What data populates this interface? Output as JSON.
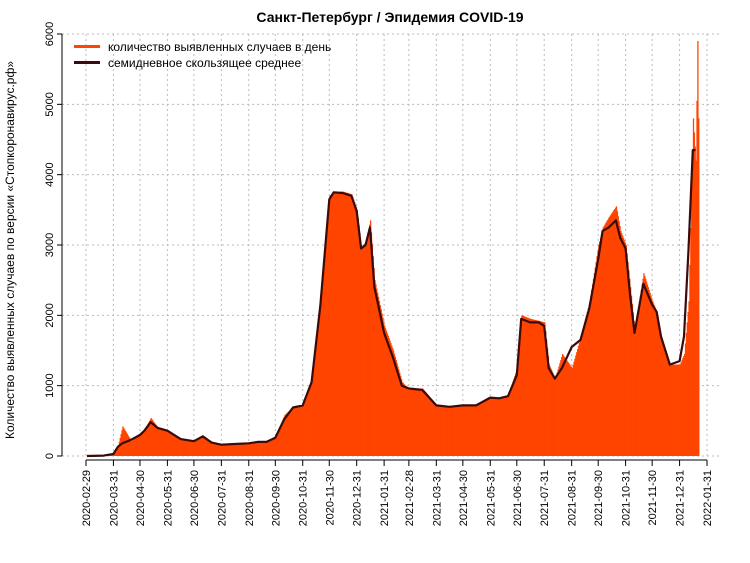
{
  "chart_data": {
    "type": "area",
    "title": "Санкт-Петербург / Эпидемия COVID-19",
    "ylabel": "Количество выявленных случаев по версии «Стопкоронавирус.рф»",
    "xlabel": "",
    "ylim": [
      0,
      6000
    ],
    "yticks": [
      0,
      1000,
      2000,
      3000,
      4000,
      5000,
      6000
    ],
    "xticks": [
      "2020-02-29",
      "2020-03-31",
      "2020-04-30",
      "2020-05-31",
      "2020-06-30",
      "2020-07-31",
      "2020-08-31",
      "2020-09-30",
      "2020-10-31",
      "2020-11-30",
      "2020-12-31",
      "2021-01-31",
      "2021-02-28",
      "2021-03-31",
      "2021-04-30",
      "2021-05-31",
      "2021-06-30",
      "2021-07-31",
      "2021-08-31",
      "2021-09-30",
      "2021-10-31",
      "2021-11-30",
      "2021-12-31",
      "2022-01-31"
    ],
    "grid": true,
    "legend_position": "top-left",
    "colors": {
      "daily": "#ff4500",
      "average": "#3b0a0a",
      "grid": "#bbbbbb"
    },
    "series": [
      {
        "name": "количество выявленных случаев в день",
        "style": "bars",
        "x": [
          "2020-03-01",
          "2020-03-20",
          "2020-03-31",
          "2020-04-05",
          "2020-04-10",
          "2020-04-20",
          "2020-04-30",
          "2020-05-05",
          "2020-05-12",
          "2020-05-20",
          "2020-05-31",
          "2020-06-15",
          "2020-06-30",
          "2020-07-10",
          "2020-07-20",
          "2020-07-31",
          "2020-08-15",
          "2020-08-31",
          "2020-09-10",
          "2020-09-20",
          "2020-09-30",
          "2020-10-10",
          "2020-10-20",
          "2020-10-31",
          "2020-11-10",
          "2020-11-20",
          "2020-11-30",
          "2020-12-05",
          "2020-12-15",
          "2020-12-25",
          "2020-12-31",
          "2021-01-05",
          "2021-01-10",
          "2021-01-15",
          "2021-01-20",
          "2021-01-31",
          "2021-02-10",
          "2021-02-20",
          "2021-02-28",
          "2021-03-15",
          "2021-03-31",
          "2021-04-15",
          "2021-04-30",
          "2021-05-15",
          "2021-05-31",
          "2021-06-10",
          "2021-06-20",
          "2021-06-30",
          "2021-07-05",
          "2021-07-15",
          "2021-07-25",
          "2021-07-31",
          "2021-08-05",
          "2021-08-12",
          "2021-08-20",
          "2021-08-31",
          "2021-09-10",
          "2021-09-20",
          "2021-09-30",
          "2021-10-05",
          "2021-10-12",
          "2021-10-20",
          "2021-10-25",
          "2021-10-31",
          "2021-11-05",
          "2021-11-10",
          "2021-11-20",
          "2021-11-30",
          "2021-12-05",
          "2021-12-10",
          "2021-12-20",
          "2021-12-31",
          "2022-01-05",
          "2022-01-10",
          "2022-01-15",
          "2022-01-18",
          "2022-01-20",
          "2022-01-21"
        ],
        "y": [
          0,
          10,
          40,
          150,
          420,
          210,
          320,
          380,
          540,
          400,
          360,
          250,
          210,
          280,
          200,
          160,
          170,
          180,
          210,
          200,
          280,
          580,
          700,
          730,
          1100,
          2200,
          3700,
          3750,
          3760,
          3720,
          3500,
          2950,
          3050,
          3350,
          2500,
          1850,
          1500,
          1050,
          940,
          960,
          720,
          700,
          730,
          720,
          830,
          830,
          870,
          1250,
          2000,
          1950,
          1920,
          1900,
          1300,
          1100,
          1450,
          1250,
          1700,
          2200,
          3000,
          3250,
          3400,
          3550,
          3200,
          3000,
          2400,
          1800,
          2600,
          2200,
          2050,
          1700,
          1300,
          1300,
          1450,
          2200,
          4800,
          4200,
          5900,
          4800
        ]
      },
      {
        "name": "семидневное скользящее среднее",
        "style": "line",
        "x": [
          "2020-03-01",
          "2020-03-20",
          "2020-03-31",
          "2020-04-05",
          "2020-04-10",
          "2020-04-20",
          "2020-04-30",
          "2020-05-05",
          "2020-05-12",
          "2020-05-20",
          "2020-05-31",
          "2020-06-15",
          "2020-06-30",
          "2020-07-10",
          "2020-07-20",
          "2020-07-31",
          "2020-08-15",
          "2020-08-31",
          "2020-09-10",
          "2020-09-20",
          "2020-09-30",
          "2020-10-10",
          "2020-10-20",
          "2020-10-31",
          "2020-11-10",
          "2020-11-20",
          "2020-11-30",
          "2020-12-05",
          "2020-12-15",
          "2020-12-25",
          "2020-12-31",
          "2021-01-05",
          "2021-01-10",
          "2021-01-15",
          "2021-01-20",
          "2021-01-31",
          "2021-02-10",
          "2021-02-20",
          "2021-02-28",
          "2021-03-15",
          "2021-03-31",
          "2021-04-15",
          "2021-04-30",
          "2021-05-15",
          "2021-05-31",
          "2021-06-10",
          "2021-06-20",
          "2021-06-30",
          "2021-07-05",
          "2021-07-15",
          "2021-07-25",
          "2021-07-31",
          "2021-08-05",
          "2021-08-12",
          "2021-08-20",
          "2021-08-31",
          "2021-09-10",
          "2021-09-20",
          "2021-09-30",
          "2021-10-05",
          "2021-10-12",
          "2021-10-20",
          "2021-10-25",
          "2021-10-31",
          "2021-11-05",
          "2021-11-10",
          "2021-11-20",
          "2021-11-30",
          "2021-12-05",
          "2021-12-10",
          "2021-12-20",
          "2021-12-31",
          "2022-01-05",
          "2022-01-10",
          "2022-01-15",
          "2022-01-18"
        ],
        "y": [
          0,
          5,
          30,
          130,
          180,
          230,
          300,
          360,
          480,
          400,
          360,
          240,
          210,
          280,
          190,
          160,
          170,
          180,
          200,
          200,
          260,
          520,
          690,
          720,
          1050,
          2150,
          3650,
          3750,
          3740,
          3700,
          3480,
          2950,
          3000,
          3250,
          2400,
          1750,
          1400,
          1000,
          960,
          940,
          720,
          700,
          720,
          720,
          830,
          820,
          850,
          1150,
          1950,
          1900,
          1900,
          1850,
          1250,
          1100,
          1250,
          1550,
          1650,
          2100,
          2800,
          3200,
          3250,
          3350,
          3100,
          2950,
          2300,
          1750,
          2450,
          2150,
          2050,
          1700,
          1300,
          1350,
          1700,
          2900,
          4350,
          4350
        ]
      }
    ]
  }
}
